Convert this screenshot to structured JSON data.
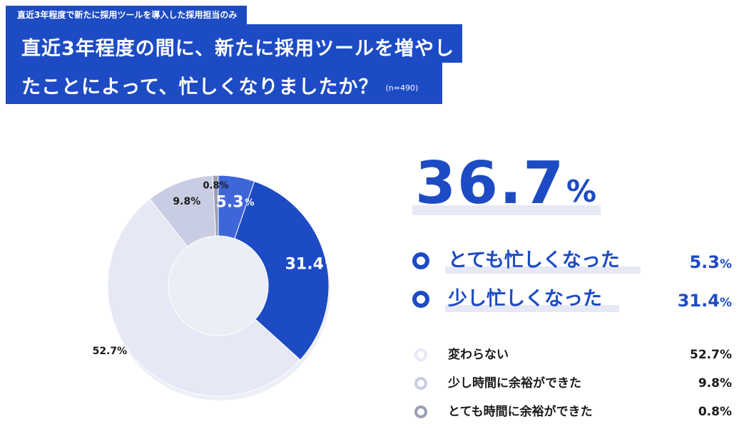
{
  "header": {
    "tag": "直近3年程度で新たに採用ツールを導入した採用担当のみ",
    "title_line1": "直近3年程度の間に、新たに採用ツールを増やし",
    "title_line2": "たことによって、忙しくなりましたか？",
    "n_label": "(n=490)"
  },
  "summary": {
    "value": "36.7",
    "unit": "%"
  },
  "chart_data": {
    "type": "pie",
    "variant": "donut",
    "title": "直近3年程度の間に、新たに採用ツールを増やしたことによって、忙しくなりましたか？",
    "n": 490,
    "unit": "%",
    "categories": [
      "とても忙しくなった",
      "少し忙しくなった",
      "変わらない",
      "少し時間に余裕ができた",
      "とても時間に余裕ができた"
    ],
    "values": [
      5.3,
      31.4,
      52.7,
      9.8,
      0.8
    ],
    "slice_labels": [
      "5.3",
      "31.4",
      "52.7%",
      "9.8%",
      "0.8%"
    ],
    "colors": [
      "#3f66d9",
      "#1d4bc4",
      "#e6e8f5",
      "#c9cde3",
      "#9a9fb5"
    ],
    "start": "top",
    "direction": "clockwise",
    "legend_position": "right"
  },
  "legend": [
    {
      "label": "とても忙しくなった",
      "value": "5.3",
      "unit": "%"
    },
    {
      "label": "少し忙しくなった",
      "value": "31.4",
      "unit": "%"
    },
    {
      "label": "変わらない",
      "value": "52.7%"
    },
    {
      "label": "少し時間に余裕ができた",
      "value": "9.8%"
    },
    {
      "label": "とても時間に余裕ができた",
      "value": "0.8%"
    }
  ]
}
